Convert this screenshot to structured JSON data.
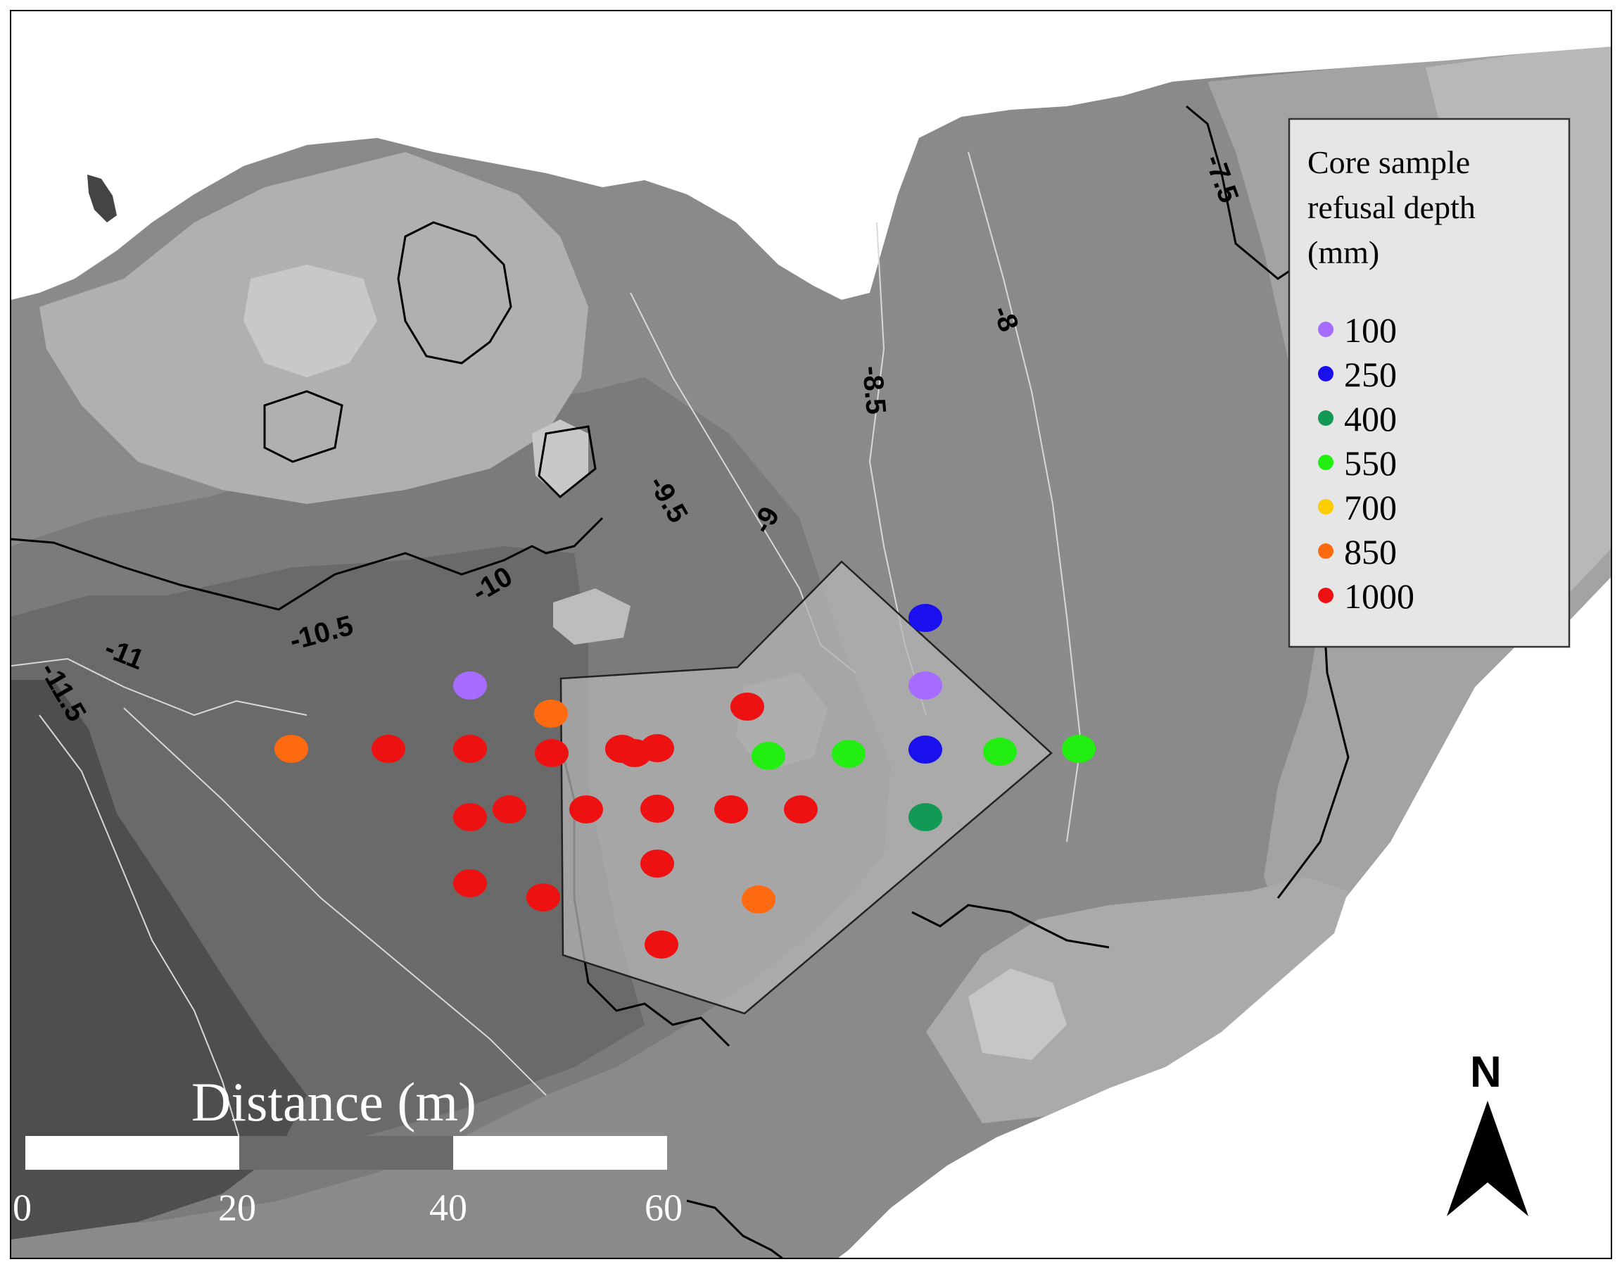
{
  "contour_labels": [
    "-7.5",
    "-8",
    "-8.5",
    "-9",
    "-9.5",
    "-10",
    "-10.5",
    "-11",
    "-11.5"
  ],
  "legend": {
    "title_lines": [
      "Core sample",
      "refusal depth",
      "(mm)"
    ],
    "items": [
      {
        "label": "100",
        "color": "#a66cff"
      },
      {
        "label": "250",
        "color": "#1a10ee"
      },
      {
        "label": "400",
        "color": "#119955"
      },
      {
        "label": "550",
        "color": "#22ee11"
      },
      {
        "label": "700",
        "color": "#ffcc00"
      },
      {
        "label": "850",
        "color": "#ff6a10"
      },
      {
        "label": "1000",
        "color": "#ee1111"
      }
    ]
  },
  "scale_bar": {
    "title": "Distance (m)",
    "ticks": [
      "0",
      "20",
      "40",
      "60"
    ]
  },
  "north_arrow": {
    "label": "N",
    "icon": "north-arrow-icon"
  },
  "core_samples": [
    {
      "depth_mm": 250
    },
    {
      "depth_mm": 100
    },
    {
      "depth_mm": 250
    },
    {
      "depth_mm": 400
    },
    {
      "depth_mm": 550
    },
    {
      "depth_mm": 550
    },
    {
      "depth_mm": 550
    },
    {
      "depth_mm": 550
    },
    {
      "depth_mm": 100
    },
    {
      "depth_mm": 850
    },
    {
      "depth_mm": 850
    },
    {
      "depth_mm": 850
    },
    {
      "depth_mm": 1000
    },
    {
      "depth_mm": 1000
    },
    {
      "depth_mm": 1000
    },
    {
      "depth_mm": 1000
    },
    {
      "depth_mm": 1000
    },
    {
      "depth_mm": 1000
    },
    {
      "depth_mm": 1000
    },
    {
      "depth_mm": 1000
    },
    {
      "depth_mm": 1000
    },
    {
      "depth_mm": 1000
    },
    {
      "depth_mm": 1000
    },
    {
      "depth_mm": 1000
    },
    {
      "depth_mm": 1000
    },
    {
      "depth_mm": 1000
    },
    {
      "depth_mm": 1000
    },
    {
      "depth_mm": 1000
    },
    {
      "depth_mm": 1000
    }
  ]
}
